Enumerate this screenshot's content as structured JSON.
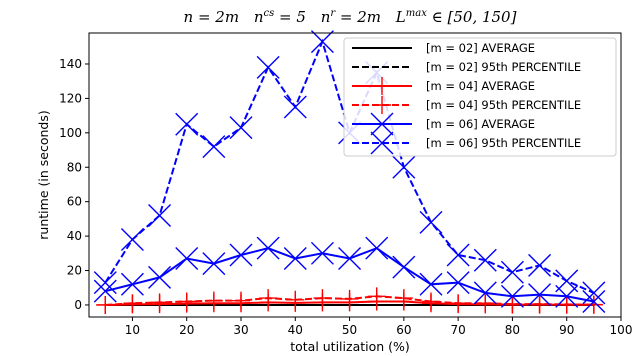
{
  "chart_data": {
    "type": "line",
    "title": "n = 2m  n^cs = 5  n^r = 2m  L^max ∈ [50, 150]",
    "xlabel": "total utilization (%)",
    "ylabel": "runtime (in seconds)",
    "xlim": [
      2,
      100
    ],
    "ylim": [
      -7,
      158
    ],
    "xticks": [
      10,
      20,
      30,
      40,
      50,
      60,
      70,
      80,
      90,
      100
    ],
    "yticks": [
      0,
      20,
      40,
      60,
      80,
      100,
      120,
      140
    ],
    "grid": false,
    "legend_position": "top-right",
    "x": [
      5,
      10,
      15,
      20,
      25,
      30,
      35,
      40,
      45,
      50,
      55,
      60,
      65,
      70,
      75,
      80,
      85,
      90,
      95
    ],
    "series": [
      {
        "name": "[m = 02] AVERAGE",
        "color": "#000000",
        "dash": "solid",
        "marker": "none",
        "values": [
          0,
          0,
          0,
          0,
          0,
          0,
          0,
          0,
          0,
          0,
          0,
          0,
          0,
          0,
          0,
          0,
          0,
          0,
          0
        ]
      },
      {
        "name": "[m = 02] 95th PERCENTILE",
        "color": "#000000",
        "dash": "dashed",
        "marker": "none",
        "values": [
          0,
          0,
          0,
          0,
          0,
          0,
          0,
          0,
          0,
          0,
          0,
          0,
          0,
          0,
          0,
          0,
          0,
          0,
          0
        ]
      },
      {
        "name": "[m = 04] AVERAGE",
        "color": "#ff0000",
        "dash": "solid",
        "marker": "plus",
        "values": [
          0,
          0.3,
          0.5,
          0.8,
          1,
          1,
          1.5,
          1.2,
          1.5,
          1.5,
          2,
          2,
          1,
          0.5,
          0.3,
          0.2,
          0.2,
          0.1,
          0.1
        ]
      },
      {
        "name": "[m = 04] 95th PERCENTILE",
        "color": "#ff0000",
        "dash": "dashed",
        "marker": "plus",
        "values": [
          0,
          1,
          1.5,
          2,
          2.5,
          2.5,
          4,
          3,
          4,
          3.5,
          5,
          4,
          2,
          1,
          1,
          0.5,
          0.5,
          0.3,
          0.2
        ]
      },
      {
        "name": "[m = 06] AVERAGE",
        "color": "#0000ff",
        "dash": "solid",
        "marker": "x",
        "values": [
          8,
          12,
          16,
          27,
          24,
          29,
          33,
          27,
          30,
          27,
          33,
          22,
          12,
          13,
          7,
          5,
          6,
          5,
          2
        ]
      },
      {
        "name": "[m = 06] 95th PERCENTILE",
        "color": "#0000ff",
        "dash": "dashed",
        "marker": "x",
        "values": [
          13,
          38,
          52,
          105,
          92,
          103,
          138,
          115,
          153,
          100,
          135,
          80,
          48,
          29,
          26,
          19,
          23,
          14,
          7
        ]
      }
    ]
  }
}
